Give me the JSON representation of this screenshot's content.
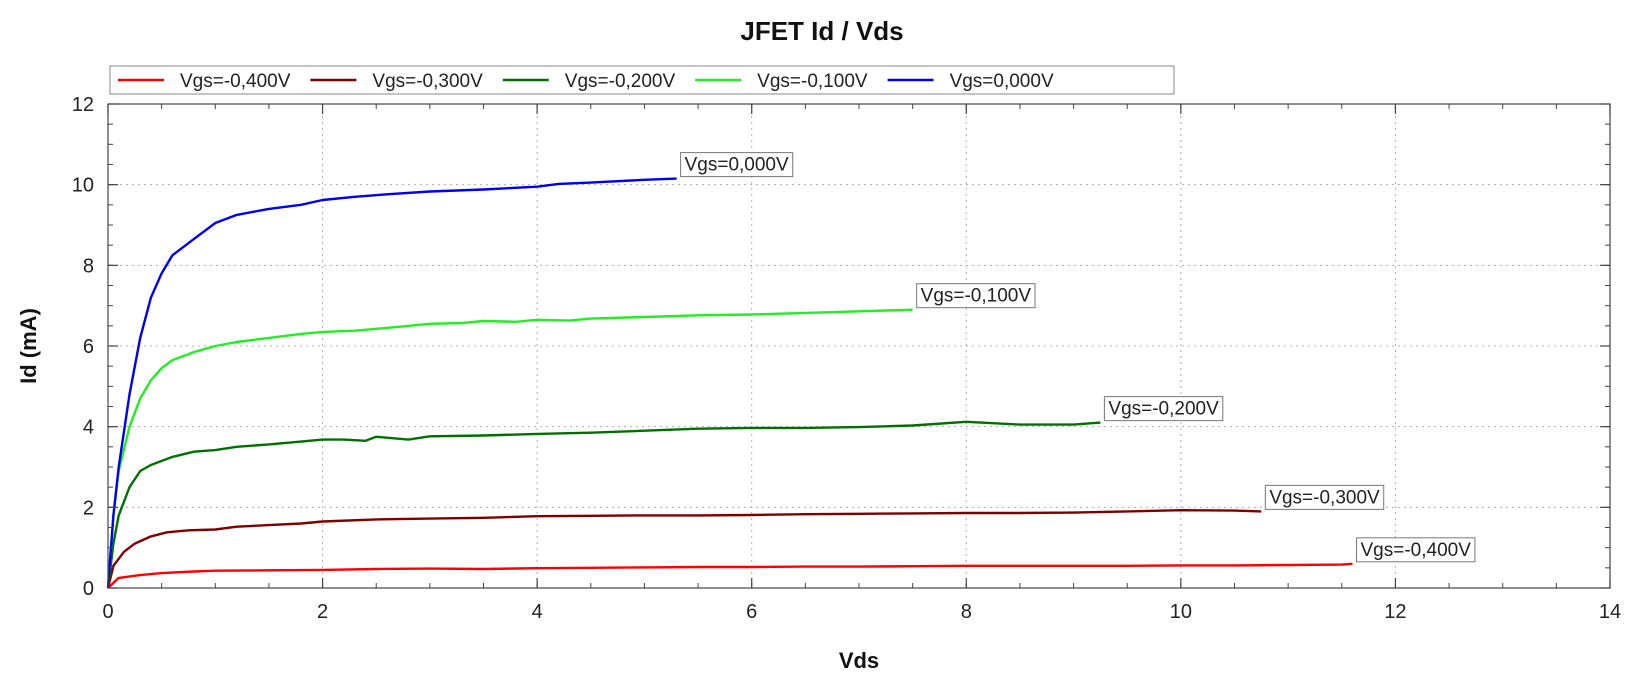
{
  "chart_data": {
    "type": "line",
    "title": "JFET Id / Vds",
    "xlabel": "Vds",
    "ylabel": "Id (mA)",
    "xlim": [
      0,
      14
    ],
    "ylim": [
      0,
      12
    ],
    "xticks": [
      "0",
      "2",
      "4",
      "6",
      "8",
      "10",
      "12",
      "14"
    ],
    "yticks": [
      "0",
      "2",
      "4",
      "6",
      "8",
      "10",
      "12"
    ],
    "grid": true,
    "legend_position": "top",
    "series": [
      {
        "name": "Vgs=-0,400V",
        "color": "#ff0000",
        "annotation": "Vgs=-0,400V",
        "x": [
          0,
          0.1,
          0.3,
          0.5,
          0.8,
          1,
          1.5,
          2,
          2.5,
          3,
          3.5,
          4,
          4.5,
          5,
          5.5,
          6,
          6.5,
          7,
          7.5,
          8,
          8.5,
          9,
          9.5,
          10,
          10.5,
          11,
          11.5,
          11.6
        ],
        "y": [
          0,
          0.25,
          0.32,
          0.37,
          0.41,
          0.43,
          0.44,
          0.45,
          0.47,
          0.48,
          0.47,
          0.49,
          0.5,
          0.51,
          0.52,
          0.52,
          0.53,
          0.53,
          0.54,
          0.55,
          0.55,
          0.55,
          0.55,
          0.56,
          0.56,
          0.57,
          0.58,
          0.6
        ]
      },
      {
        "name": "Vgs=-0,300V",
        "color": "#800000",
        "annotation": "Vgs=-0,300V",
        "x": [
          0,
          0.05,
          0.15,
          0.25,
          0.4,
          0.55,
          0.75,
          1,
          1.2,
          1.5,
          1.8,
          2,
          2.5,
          3,
          3.5,
          4,
          4.5,
          5,
          5.5,
          6,
          6.5,
          7,
          7.5,
          8,
          8.5,
          9,
          9.5,
          10,
          10.5,
          10.75
        ],
        "y": [
          0,
          0.55,
          0.9,
          1.1,
          1.28,
          1.38,
          1.43,
          1.45,
          1.52,
          1.56,
          1.6,
          1.65,
          1.7,
          1.72,
          1.74,
          1.78,
          1.79,
          1.8,
          1.8,
          1.81,
          1.83,
          1.84,
          1.85,
          1.86,
          1.86,
          1.87,
          1.9,
          1.93,
          1.92,
          1.9
        ]
      },
      {
        "name": "Vgs=-0,200V",
        "color": "#007000",
        "annotation": "Vgs=-0,200V",
        "x": [
          0,
          0.05,
          0.1,
          0.2,
          0.3,
          0.4,
          0.6,
          0.8,
          1,
          1.2,
          1.5,
          1.8,
          2,
          2.2,
          2.4,
          2.5,
          2.8,
          3,
          3.5,
          4,
          4.5,
          5,
          5.5,
          6,
          6.5,
          7,
          7.5,
          8,
          8.5,
          9,
          9.25
        ],
        "y": [
          0,
          1.1,
          1.8,
          2.5,
          2.9,
          3.05,
          3.25,
          3.38,
          3.42,
          3.5,
          3.56,
          3.63,
          3.68,
          3.68,
          3.65,
          3.75,
          3.68,
          3.76,
          3.78,
          3.82,
          3.85,
          3.9,
          3.95,
          3.97,
          3.97,
          3.99,
          4.03,
          4.12,
          4.05,
          4.05,
          4.1
        ]
      },
      {
        "name": "Vgs=-0,100V",
        "color": "#22ee22",
        "annotation": "Vgs=-0,100V",
        "x": [
          0,
          0.05,
          0.1,
          0.2,
          0.3,
          0.4,
          0.5,
          0.6,
          0.8,
          1,
          1.2,
          1.5,
          1.8,
          2,
          2.3,
          2.6,
          3,
          3.3,
          3.5,
          3.8,
          4,
          4.3,
          4.5,
          5,
          5.5,
          6,
          6.5,
          7,
          7.5
        ],
        "y": [
          0,
          1.8,
          2.9,
          4.0,
          4.7,
          5.15,
          5.45,
          5.65,
          5.85,
          6.0,
          6.1,
          6.2,
          6.3,
          6.35,
          6.38,
          6.45,
          6.55,
          6.57,
          6.62,
          6.6,
          6.65,
          6.63,
          6.68,
          6.72,
          6.76,
          6.78,
          6.82,
          6.86,
          6.9
        ]
      },
      {
        "name": "Vgs=0,000V",
        "color": "#0000ee",
        "annotation": "Vgs=0,000V",
        "x": [
          0,
          0.05,
          0.1,
          0.15,
          0.2,
          0.3,
          0.4,
          0.5,
          0.6,
          0.8,
          1,
          1.2,
          1.5,
          1.8,
          2,
          2.3,
          2.6,
          3,
          3.5,
          4,
          4.2,
          4.5,
          5,
          5.3
        ],
        "y": [
          0,
          1.8,
          3.0,
          3.9,
          4.8,
          6.2,
          7.2,
          7.8,
          8.25,
          8.65,
          9.05,
          9.25,
          9.4,
          9.5,
          9.62,
          9.7,
          9.76,
          9.83,
          9.88,
          9.95,
          10.02,
          10.05,
          10.12,
          10.15
        ]
      }
    ]
  }
}
